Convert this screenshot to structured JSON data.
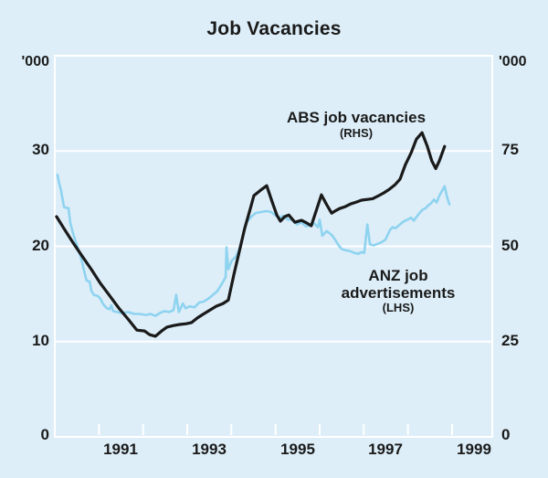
{
  "title": "Job Vacancies",
  "chart_data": {
    "type": "line",
    "title": "Job Vacancies",
    "background_color": "#ddeef8",
    "grid_color": "#ffffff",
    "text_color": "#1a1a1a",
    "legend_position": "annotations-inside-plot",
    "grid": "horizontal-only",
    "x_axis": {
      "range": [
        1990.0,
        1999.91
      ],
      "tick_years": [
        1991,
        1992,
        1993,
        1994,
        1995,
        1996,
        1997,
        1998,
        1999
      ],
      "labels": [
        "1991",
        "1993",
        "1995",
        "1997",
        "1999"
      ]
    },
    "y_axis_left": {
      "unit": "'000",
      "range": [
        0,
        40
      ],
      "tick_labels": [
        "0",
        "10",
        "20",
        "30"
      ],
      "gridline_values": [
        10,
        20,
        30
      ]
    },
    "y_axis_right": {
      "unit": "'000",
      "range": [
        0,
        100
      ],
      "tick_labels": [
        "0",
        "25",
        "50",
        "75"
      ]
    },
    "series": [
      {
        "id": "anz-job-advertisements",
        "label": "ANZ job advertisements",
        "sub": "(LHS)",
        "axis": "left",
        "color": "#8ed3f0",
        "width": 2.6,
        "points": [
          [
            1990.06,
            27.5
          ],
          [
            1990.1,
            26.6
          ],
          [
            1990.14,
            25.9
          ],
          [
            1990.17,
            25.1
          ],
          [
            1990.21,
            24.1
          ],
          [
            1990.31,
            24.0
          ],
          [
            1990.35,
            22.5
          ],
          [
            1990.41,
            21.4
          ],
          [
            1990.48,
            20.4
          ],
          [
            1990.56,
            19.3
          ],
          [
            1990.62,
            18.3
          ],
          [
            1990.68,
            17.1
          ],
          [
            1990.72,
            16.4
          ],
          [
            1990.79,
            16.3
          ],
          [
            1990.83,
            15.3
          ],
          [
            1990.89,
            14.9
          ],
          [
            1990.97,
            14.8
          ],
          [
            1991.03,
            14.5
          ],
          [
            1991.1,
            13.9
          ],
          [
            1991.18,
            13.5
          ],
          [
            1991.24,
            13.4
          ],
          [
            1991.28,
            13.8
          ],
          [
            1991.32,
            13.2
          ],
          [
            1991.41,
            13.1
          ],
          [
            1991.51,
            13.0
          ],
          [
            1991.66,
            13.1
          ],
          [
            1991.8,
            12.9
          ],
          [
            1991.92,
            12.9
          ],
          [
            1992.07,
            12.8
          ],
          [
            1992.17,
            12.9
          ],
          [
            1992.28,
            12.7
          ],
          [
            1992.38,
            13.0
          ],
          [
            1992.48,
            13.2
          ],
          [
            1992.59,
            13.1
          ],
          [
            1992.69,
            13.3
          ],
          [
            1992.75,
            14.9
          ],
          [
            1992.81,
            13.1
          ],
          [
            1992.9,
            14.0
          ],
          [
            1992.96,
            13.5
          ],
          [
            1993.06,
            13.7
          ],
          [
            1993.17,
            13.6
          ],
          [
            1993.27,
            14.1
          ],
          [
            1993.37,
            14.2
          ],
          [
            1993.48,
            14.5
          ],
          [
            1993.58,
            14.9
          ],
          [
            1993.68,
            15.3
          ],
          [
            1993.79,
            16.1
          ],
          [
            1993.87,
            16.8
          ],
          [
            1993.89,
            19.9
          ],
          [
            1993.93,
            17.6
          ],
          [
            1994.01,
            18.5
          ],
          [
            1994.1,
            18.9
          ],
          [
            1994.18,
            19.7
          ],
          [
            1994.24,
            20.7
          ],
          [
            1994.34,
            22.5
          ],
          [
            1994.45,
            23.1
          ],
          [
            1994.55,
            23.5
          ],
          [
            1994.68,
            23.6
          ],
          [
            1994.8,
            23.7
          ],
          [
            1994.9,
            23.6
          ],
          [
            1995.01,
            23.2
          ],
          [
            1995.09,
            23.0
          ],
          [
            1995.17,
            23.2
          ],
          [
            1995.28,
            22.8
          ],
          [
            1995.38,
            22.8
          ],
          [
            1995.48,
            22.3
          ],
          [
            1995.59,
            22.5
          ],
          [
            1995.69,
            22.1
          ],
          [
            1995.79,
            22.2
          ],
          [
            1995.88,
            22.4
          ],
          [
            1995.96,
            22.0
          ],
          [
            1996.0,
            22.8
          ],
          [
            1996.06,
            21.1
          ],
          [
            1996.16,
            21.6
          ],
          [
            1996.27,
            21.2
          ],
          [
            1996.35,
            20.7
          ],
          [
            1996.43,
            20.1
          ],
          [
            1996.5,
            19.7
          ],
          [
            1996.58,
            19.6
          ],
          [
            1996.68,
            19.5
          ],
          [
            1996.79,
            19.3
          ],
          [
            1996.87,
            19.2
          ],
          [
            1996.95,
            19.4
          ],
          [
            1997.01,
            19.3
          ],
          [
            1997.08,
            22.3
          ],
          [
            1997.14,
            20.2
          ],
          [
            1997.22,
            20.1
          ],
          [
            1997.28,
            20.2
          ],
          [
            1997.39,
            20.4
          ],
          [
            1997.49,
            20.7
          ],
          [
            1997.59,
            21.7
          ],
          [
            1997.65,
            22.0
          ],
          [
            1997.72,
            21.9
          ],
          [
            1997.82,
            22.3
          ],
          [
            1997.9,
            22.6
          ],
          [
            1997.99,
            22.8
          ],
          [
            1998.07,
            23.0
          ],
          [
            1998.13,
            22.7
          ],
          [
            1998.23,
            23.3
          ],
          [
            1998.32,
            23.8
          ],
          [
            1998.4,
            24.0
          ],
          [
            1998.46,
            24.3
          ],
          [
            1998.52,
            24.5
          ],
          [
            1998.59,
            24.9
          ],
          [
            1998.65,
            24.6
          ],
          [
            1998.71,
            25.3
          ],
          [
            1998.77,
            25.8
          ],
          [
            1998.83,
            26.3
          ],
          [
            1998.89,
            25.1
          ],
          [
            1998.94,
            24.4
          ]
        ]
      },
      {
        "id": "abs-job-vacancies",
        "label": "ABS job vacancies",
        "sub": "(RHS)",
        "axis": "right",
        "color": "#1a1a1a",
        "width": 3.2,
        "points": [
          [
            1990.04,
            57.8
          ],
          [
            1990.21,
            54.6
          ],
          [
            1990.41,
            51.0
          ],
          [
            1990.62,
            47.4
          ],
          [
            1990.83,
            43.9
          ],
          [
            1991.03,
            40.3
          ],
          [
            1991.24,
            37.1
          ],
          [
            1991.45,
            33.8
          ],
          [
            1991.66,
            30.9
          ],
          [
            1991.86,
            28.0
          ],
          [
            1992.03,
            27.8
          ],
          [
            1992.15,
            26.8
          ],
          [
            1992.28,
            26.4
          ],
          [
            1992.42,
            27.8
          ],
          [
            1992.54,
            28.8
          ],
          [
            1992.69,
            29.2
          ],
          [
            1992.83,
            29.5
          ],
          [
            1992.98,
            29.7
          ],
          [
            1993.1,
            30.0
          ],
          [
            1993.23,
            31.2
          ],
          [
            1993.35,
            32.1
          ],
          [
            1993.52,
            33.3
          ],
          [
            1993.66,
            34.3
          ],
          [
            1993.81,
            35.0
          ],
          [
            1993.93,
            35.9
          ],
          [
            1994.06,
            42.7
          ],
          [
            1994.18,
            48.6
          ],
          [
            1994.3,
            54.6
          ],
          [
            1994.43,
            59.9
          ],
          [
            1994.51,
            63.3
          ],
          [
            1994.66,
            64.7
          ],
          [
            1994.8,
            65.9
          ],
          [
            1994.92,
            61.8
          ],
          [
            1995.03,
            58.2
          ],
          [
            1995.11,
            56.6
          ],
          [
            1995.21,
            57.8
          ],
          [
            1995.3,
            58.2
          ],
          [
            1995.44,
            56.3
          ],
          [
            1995.59,
            56.8
          ],
          [
            1995.71,
            56.1
          ],
          [
            1995.81,
            55.4
          ],
          [
            1996.04,
            63.5
          ],
          [
            1996.16,
            60.9
          ],
          [
            1996.27,
            58.7
          ],
          [
            1996.37,
            59.4
          ],
          [
            1996.45,
            59.9
          ],
          [
            1996.58,
            60.4
          ],
          [
            1996.7,
            61.1
          ],
          [
            1996.83,
            61.6
          ],
          [
            1996.95,
            62.1
          ],
          [
            1997.08,
            62.3
          ],
          [
            1997.2,
            62.5
          ],
          [
            1997.34,
            63.3
          ],
          [
            1997.45,
            64.0
          ],
          [
            1997.57,
            64.9
          ],
          [
            1997.7,
            66.1
          ],
          [
            1997.82,
            67.6
          ],
          [
            1997.94,
            71.4
          ],
          [
            1998.07,
            74.5
          ],
          [
            1998.19,
            78.1
          ],
          [
            1998.32,
            79.8
          ],
          [
            1998.44,
            76.2
          ],
          [
            1998.54,
            72.4
          ],
          [
            1998.63,
            70.4
          ],
          [
            1998.71,
            72.4
          ],
          [
            1998.77,
            74.3
          ],
          [
            1998.83,
            76.2
          ]
        ]
      }
    ]
  }
}
